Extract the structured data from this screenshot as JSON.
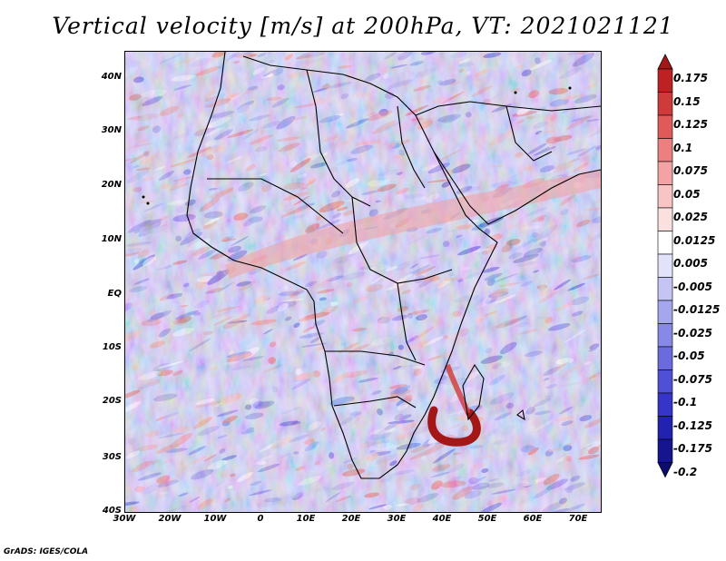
{
  "title": "Vertical velocity [m/s] at 200hPa, VT: 2021021121",
  "credit": "GrADS: IGES/COLA",
  "lat_axis": [
    "40N",
    "30N",
    "20N",
    "10N",
    "EQ",
    "10S",
    "20S",
    "30S",
    "40S"
  ],
  "lon_axis": [
    "30W",
    "20W",
    "10W",
    "0",
    "10E",
    "20E",
    "30E",
    "40E",
    "50E",
    "60E",
    "70E"
  ],
  "colorbar": {
    "labels": [
      "0.175",
      "0.15",
      "0.125",
      "0.1",
      "0.075",
      "0.05",
      "0.025",
      "0.0125",
      "0.005",
      "-0.005",
      "-0.0125",
      "-0.025",
      "-0.05",
      "-0.075",
      "-0.1",
      "-0.125",
      "-0.175",
      "-0.2"
    ],
    "colors": [
      "#a31717",
      "#bd2121",
      "#cf3a3a",
      "#e05a5a",
      "#ec8080",
      "#f3a3a3",
      "#f8c4c4",
      "#fbe0e0",
      "#ffffff",
      "#e2e2fa",
      "#c4c4f5",
      "#a6a6ef",
      "#8888e8",
      "#6b6be0",
      "#5050d6",
      "#3535c9",
      "#2222b0",
      "#15158f",
      "#0c0c6e"
    ]
  }
}
